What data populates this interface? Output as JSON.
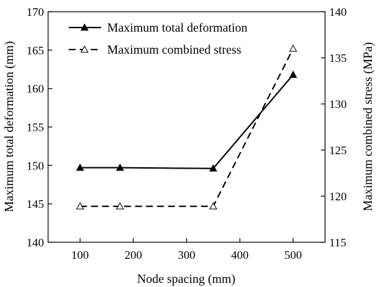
{
  "chart_data": {
    "type": "line",
    "xlabel": "Node spacing (mm)",
    "ylabel_left": "Maximum total deformation (mm)",
    "ylabel_right": "Maximum combined stress (MPa)",
    "xlim": [
      40,
      560
    ],
    "ylim_left": [
      140,
      170
    ],
    "ylim_right": [
      115,
      140
    ],
    "xticks": [
      100,
      200,
      300,
      400,
      500
    ],
    "yticks_left": [
      140,
      145,
      150,
      155,
      160,
      165,
      170
    ],
    "yticks_right": [
      115,
      120,
      125,
      130,
      135,
      140
    ],
    "legend_position": "top-center",
    "series": [
      {
        "name": "Maximum total deformation",
        "axis": "left",
        "line_style": "solid",
        "marker": "filled-triangle",
        "color": "#000000",
        "x": [
          100,
          175,
          350,
          500
        ],
        "y": [
          149.7,
          149.7,
          149.6,
          161.8
        ]
      },
      {
        "name": "Maximum combined stress",
        "axis": "right",
        "line_style": "dashed",
        "marker": "open-triangle",
        "color": "#000000",
        "x": [
          100,
          175,
          350,
          500
        ],
        "y": [
          118.9,
          118.9,
          118.9,
          136.0
        ]
      }
    ]
  }
}
